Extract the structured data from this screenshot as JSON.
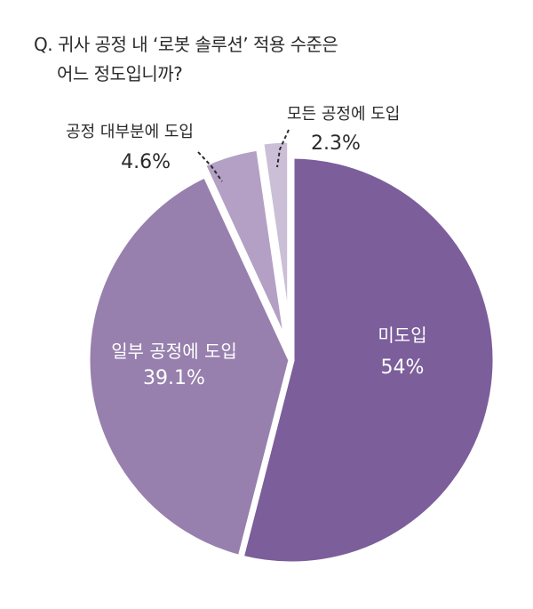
{
  "question": {
    "line1": "Q. 귀사 공정 내 ‘로봇 솔루션’ 적용 수준은",
    "line2": "어느 정도입니까?"
  },
  "chart_data": {
    "type": "pie",
    "title": "Q. 귀사 공정 내 ‘로봇 솔루션’ 적용 수준은 어느 정도입니까?",
    "slices": [
      {
        "label": "미도입",
        "value": 54,
        "display": "54%",
        "color": "#7c5e9b"
      },
      {
        "label": "일부 공정에 도입",
        "value": 39.1,
        "display": "39.1%",
        "color": "#9780ad"
      },
      {
        "label": "공정 대부분에 도입",
        "value": 4.6,
        "display": "4.6%",
        "color": "#b3a0c4"
      },
      {
        "label": "모든 공정에 도입",
        "value": 2.3,
        "display": "2.3%",
        "color": "#cbbfd7"
      }
    ],
    "start": "12 o'clock, clockwise",
    "legend": "none"
  }
}
